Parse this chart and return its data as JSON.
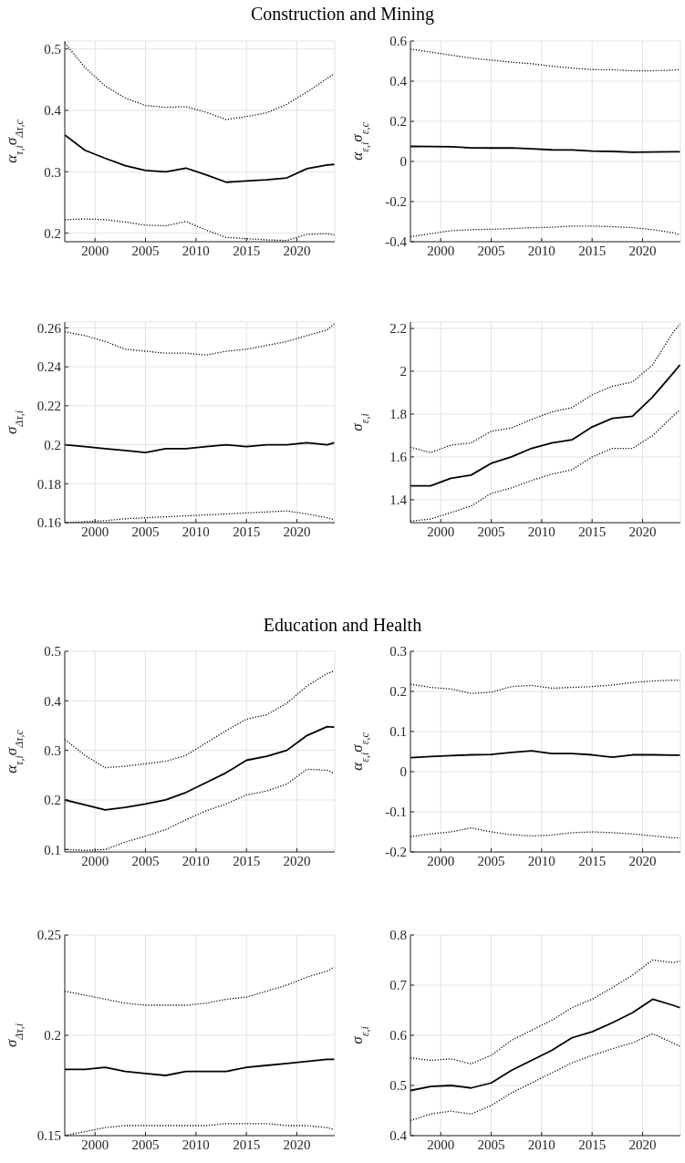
{
  "chart_data": [
    {
      "type": "line",
      "title": "Construction and Mining",
      "ylabel": "α$_{τ,i}$σ$_{Δτ,c}$",
      "x": [
        1997,
        1999,
        2001,
        2003,
        2005,
        2007,
        2009,
        2011,
        2013,
        2015,
        2017,
        2019,
        2021,
        2023,
        2023.7
      ],
      "xlim": [
        1997,
        2023.75
      ],
      "xticks": [
        2000,
        2005,
        2010,
        2015,
        2020
      ],
      "ylim": [
        0.186,
        0.513
      ],
      "yticks": [
        0.2,
        0.3,
        0.4,
        0.5
      ],
      "grid": true,
      "series": [
        {
          "color": "#000000",
          "line_style": "dotted",
          "values": [
            0.51,
            0.47,
            0.44,
            0.42,
            0.408,
            0.405,
            0.406,
            0.397,
            0.385,
            0.39,
            0.396,
            0.41,
            0.43,
            0.452,
            0.46
          ]
        },
        {
          "color": "#000000",
          "line_style": "solid",
          "values": [
            0.36,
            0.335,
            0.322,
            0.31,
            0.302,
            0.3,
            0.306,
            0.295,
            0.283,
            0.285,
            0.287,
            0.29,
            0.305,
            0.311,
            0.312
          ]
        },
        {
          "color": "#000000",
          "line_style": "dotted",
          "values": [
            0.222,
            0.223,
            0.222,
            0.218,
            0.213,
            0.212,
            0.219,
            0.205,
            0.193,
            0.191,
            0.189,
            0.188,
            0.198,
            0.199,
            0.197
          ]
        }
      ]
    },
    {
      "type": "line",
      "ylabel": "α$_{ε,i}$σ$_{ε,c}$",
      "x": [
        1997,
        1999,
        2001,
        2003,
        2005,
        2007,
        2009,
        2011,
        2013,
        2015,
        2017,
        2019,
        2021,
        2023,
        2023.7
      ],
      "xlim": [
        1997,
        2023.75
      ],
      "xticks": [
        2000,
        2005,
        2010,
        2015,
        2020
      ],
      "ylim": [
        -0.4,
        0.6
      ],
      "yticks": [
        -0.4,
        -0.2,
        0,
        0.2,
        0.4,
        0.6
      ],
      "grid": true,
      "series": [
        {
          "color": "#000000",
          "line_style": "dotted",
          "values": [
            0.56,
            0.545,
            0.53,
            0.515,
            0.505,
            0.495,
            0.487,
            0.475,
            0.465,
            0.458,
            0.457,
            0.452,
            0.452,
            0.455,
            0.458
          ]
        },
        {
          "color": "#000000",
          "line_style": "solid",
          "values": [
            0.075,
            0.074,
            0.073,
            0.068,
            0.067,
            0.068,
            0.063,
            0.058,
            0.057,
            0.052,
            0.05,
            0.046,
            0.047,
            0.048,
            0.048
          ]
        },
        {
          "color": "#000000",
          "line_style": "dotted",
          "values": [
            -0.375,
            -0.36,
            -0.345,
            -0.34,
            -0.338,
            -0.335,
            -0.33,
            -0.328,
            -0.322,
            -0.322,
            -0.325,
            -0.33,
            -0.34,
            -0.355,
            -0.365
          ]
        }
      ]
    },
    {
      "type": "line",
      "ylabel": "σ$_{Δτ,i}$",
      "x": [
        1997,
        1999,
        2001,
        2003,
        2005,
        2007,
        2009,
        2011,
        2013,
        2015,
        2017,
        2019,
        2021,
        2023,
        2023.7
      ],
      "xlim": [
        1997,
        2023.75
      ],
      "xticks": [
        2000,
        2005,
        2010,
        2015,
        2020
      ],
      "ylim": [
        0.16,
        0.263
      ],
      "yticks": [
        0.16,
        0.18,
        0.2,
        0.22,
        0.24,
        0.26
      ],
      "grid": true,
      "series": [
        {
          "color": "#000000",
          "line_style": "dotted",
          "values": [
            0.258,
            0.256,
            0.253,
            0.249,
            0.248,
            0.247,
            0.247,
            0.246,
            0.248,
            0.249,
            0.251,
            0.253,
            0.256,
            0.259,
            0.262
          ]
        },
        {
          "color": "#000000",
          "line_style": "solid",
          "values": [
            0.2,
            0.199,
            0.198,
            0.197,
            0.196,
            0.198,
            0.198,
            0.199,
            0.2,
            0.199,
            0.2,
            0.2,
            0.201,
            0.2,
            0.201
          ]
        },
        {
          "color": "#000000",
          "line_style": "dotted",
          "values": [
            0.16,
            0.1605,
            0.161,
            0.162,
            0.1625,
            0.163,
            0.1635,
            0.164,
            0.1645,
            0.165,
            0.1655,
            0.166,
            0.1645,
            0.1625,
            0.1615
          ]
        }
      ]
    },
    {
      "type": "line",
      "ylabel": "σ$_{ε,i}$",
      "x": [
        1997,
        1999,
        2001,
        2003,
        2005,
        2007,
        2009,
        2011,
        2013,
        2015,
        2017,
        2019,
        2021,
        2023,
        2023.7
      ],
      "xlim": [
        1997,
        2023.75
      ],
      "xticks": [
        2000,
        2005,
        2010,
        2015,
        2020
      ],
      "ylim": [
        1.293,
        2.23
      ],
      "yticks": [
        1.4,
        1.6,
        1.8,
        2,
        2.2
      ],
      "grid": true,
      "series": [
        {
          "color": "#000000",
          "line_style": "dotted",
          "values": [
            1.645,
            1.62,
            1.655,
            1.665,
            1.72,
            1.735,
            1.775,
            1.81,
            1.83,
            1.89,
            1.93,
            1.95,
            2.03,
            2.18,
            2.22
          ]
        },
        {
          "color": "#000000",
          "line_style": "solid",
          "values": [
            1.465,
            1.465,
            1.5,
            1.515,
            1.57,
            1.6,
            1.64,
            1.665,
            1.68,
            1.74,
            1.78,
            1.79,
            1.88,
            1.99,
            2.03
          ]
        },
        {
          "color": "#000000",
          "line_style": "dotted",
          "values": [
            1.3,
            1.31,
            1.34,
            1.37,
            1.43,
            1.455,
            1.49,
            1.52,
            1.54,
            1.6,
            1.64,
            1.64,
            1.7,
            1.79,
            1.82
          ]
        }
      ]
    },
    {
      "type": "line",
      "title": "Education and Health",
      "ylabel": "α$_{τ,i}$σ$_{Δτ,c}$",
      "x": [
        1997,
        1999,
        2001,
        2003,
        2005,
        2007,
        2009,
        2011,
        2013,
        2015,
        2017,
        2019,
        2021,
        2023,
        2023.7
      ],
      "xlim": [
        1997,
        2023.75
      ],
      "xticks": [
        2000,
        2005,
        2010,
        2015,
        2020
      ],
      "ylim": [
        0.095,
        0.5
      ],
      "yticks": [
        0.1,
        0.2,
        0.3,
        0.4,
        0.5
      ],
      "grid": true,
      "series": [
        {
          "color": "#000000",
          "line_style": "dotted",
          "values": [
            0.322,
            0.29,
            0.265,
            0.268,
            0.273,
            0.278,
            0.29,
            0.315,
            0.34,
            0.363,
            0.372,
            0.395,
            0.43,
            0.455,
            0.46
          ]
        },
        {
          "color": "#000000",
          "line_style": "solid",
          "values": [
            0.2,
            0.19,
            0.18,
            0.185,
            0.192,
            0.2,
            0.215,
            0.235,
            0.255,
            0.28,
            0.288,
            0.3,
            0.33,
            0.348,
            0.347
          ]
        },
        {
          "color": "#000000",
          "line_style": "dotted",
          "values": [
            0.1,
            0.098,
            0.1,
            0.115,
            0.127,
            0.14,
            0.16,
            0.178,
            0.192,
            0.21,
            0.218,
            0.232,
            0.262,
            0.26,
            0.253
          ]
        }
      ]
    },
    {
      "type": "line",
      "ylabel": "α$_{ε,i}$σ$_{ε,c}$",
      "x": [
        1997,
        1999,
        2001,
        2003,
        2005,
        2007,
        2009,
        2011,
        2013,
        2015,
        2017,
        2019,
        2021,
        2023,
        2023.7
      ],
      "xlim": [
        1997,
        2023.75
      ],
      "xticks": [
        2000,
        2005,
        2010,
        2015,
        2020
      ],
      "ylim": [
        -0.2,
        0.3
      ],
      "yticks": [
        -0.2,
        -0.1,
        0,
        0.1,
        0.2,
        0.3
      ],
      "grid": true,
      "series": [
        {
          "color": "#000000",
          "line_style": "dotted",
          "values": [
            0.218,
            0.21,
            0.206,
            0.195,
            0.198,
            0.212,
            0.215,
            0.208,
            0.21,
            0.212,
            0.216,
            0.222,
            0.226,
            0.228,
            0.228
          ]
        },
        {
          "color": "#000000",
          "line_style": "solid",
          "values": [
            0.035,
            0.038,
            0.04,
            0.042,
            0.043,
            0.048,
            0.052,
            0.045,
            0.045,
            0.042,
            0.036,
            0.042,
            0.042,
            0.041,
            0.041
          ]
        },
        {
          "color": "#000000",
          "line_style": "dotted",
          "values": [
            -0.162,
            -0.155,
            -0.15,
            -0.14,
            -0.15,
            -0.157,
            -0.16,
            -0.158,
            -0.152,
            -0.15,
            -0.152,
            -0.155,
            -0.16,
            -0.165,
            -0.165
          ]
        }
      ]
    },
    {
      "type": "line",
      "ylabel": "σ$_{Δτ,i}$",
      "x": [
        1997,
        1999,
        2001,
        2003,
        2005,
        2007,
        2009,
        2011,
        2013,
        2015,
        2017,
        2019,
        2021,
        2023,
        2023.7
      ],
      "xlim": [
        1997,
        2023.75
      ],
      "xticks": [
        2000,
        2005,
        2010,
        2015,
        2020
      ],
      "ylim": [
        0.15,
        0.25
      ],
      "yticks": [
        0.15,
        0.2,
        0.25
      ],
      "grid": true,
      "series": [
        {
          "color": "#000000",
          "line_style": "dotted",
          "values": [
            0.222,
            0.22,
            0.218,
            0.216,
            0.215,
            0.215,
            0.215,
            0.216,
            0.218,
            0.219,
            0.222,
            0.225,
            0.229,
            0.232,
            0.234
          ]
        },
        {
          "color": "#000000",
          "line_style": "solid",
          "values": [
            0.183,
            0.183,
            0.184,
            0.182,
            0.181,
            0.18,
            0.182,
            0.182,
            0.182,
            0.184,
            0.185,
            0.186,
            0.187,
            0.188,
            0.188
          ]
        },
        {
          "color": "#000000",
          "line_style": "dotted",
          "values": [
            0.15,
            0.152,
            0.154,
            0.155,
            0.155,
            0.155,
            0.155,
            0.155,
            0.156,
            0.156,
            0.156,
            0.155,
            0.155,
            0.154,
            0.153
          ]
        }
      ]
    },
    {
      "type": "line",
      "ylabel": "σ$_{ε,i}$",
      "x": [
        1997,
        1999,
        2001,
        2003,
        2005,
        2007,
        2009,
        2011,
        2013,
        2015,
        2017,
        2019,
        2021,
        2023,
        2023.7
      ],
      "xlim": [
        1997,
        2023.75
      ],
      "xticks": [
        2000,
        2005,
        2010,
        2015,
        2020
      ],
      "ylim": [
        0.4,
        0.8
      ],
      "yticks": [
        0.4,
        0.5,
        0.6,
        0.7,
        0.8
      ],
      "grid": true,
      "series": [
        {
          "color": "#000000",
          "line_style": "dotted",
          "values": [
            0.555,
            0.55,
            0.553,
            0.543,
            0.56,
            0.59,
            0.61,
            0.63,
            0.655,
            0.672,
            0.695,
            0.72,
            0.75,
            0.745,
            0.748
          ]
        },
        {
          "color": "#000000",
          "line_style": "solid",
          "values": [
            0.49,
            0.498,
            0.5,
            0.495,
            0.505,
            0.53,
            0.55,
            0.57,
            0.595,
            0.607,
            0.625,
            0.645,
            0.672,
            0.66,
            0.655
          ]
        },
        {
          "color": "#000000",
          "line_style": "dotted",
          "values": [
            0.43,
            0.443,
            0.449,
            0.443,
            0.46,
            0.485,
            0.505,
            0.525,
            0.545,
            0.56,
            0.573,
            0.585,
            0.603,
            0.585,
            0.578
          ]
        }
      ]
    }
  ]
}
